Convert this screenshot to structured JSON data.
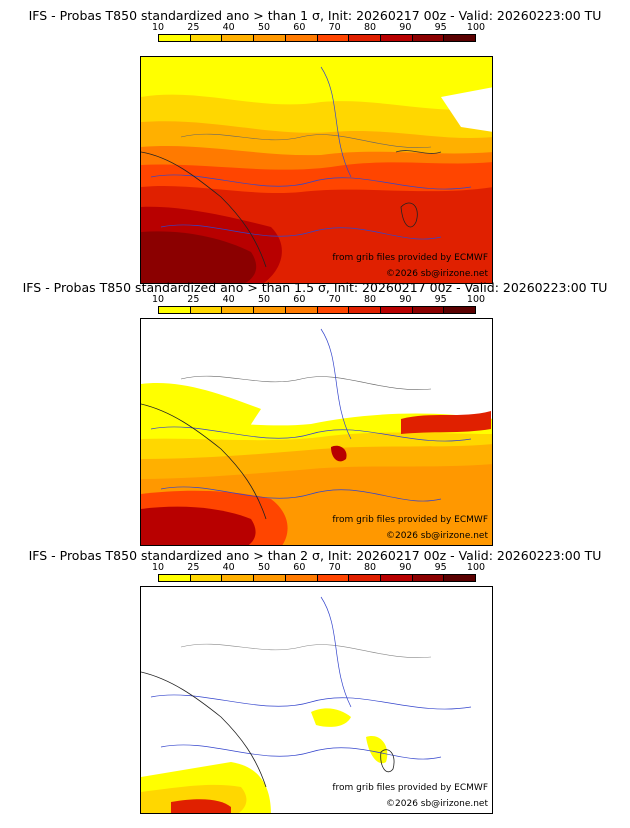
{
  "legend": {
    "labels": [
      "10",
      "25",
      "40",
      "50",
      "60",
      "70",
      "80",
      "90",
      "95",
      "100"
    ],
    "colors": [
      "#ffff00",
      "#ffd700",
      "#ffb000",
      "#ff9800",
      "#ff7a00",
      "#ff4500",
      "#e02000",
      "#b80000",
      "#8b0000",
      "#5a0000"
    ]
  },
  "panels": [
    {
      "title": "IFS - Probas T850  standardized ano > than 1 σ, Init: 20260217 00z - Valid: 20260223:00 TU",
      "credit_source": "from grib files provided by ECMWF",
      "credit_copyright": "©2026 sb@irizone.net"
    },
    {
      "title": "IFS - Probas T850  standardized ano > than 1.5 σ, Init: 20260217 00z - Valid: 20260223:00 TU",
      "credit_source": "from grib files provided by ECMWF",
      "credit_copyright": "©2026 sb@irizone.net"
    },
    {
      "title": "IFS - Probas T850  standardized ano > than 2 σ, Init: 20260217 00z - Valid: 20260223:00 TU",
      "credit_source": "from grib files provided by ECMWF",
      "credit_copyright": "©2026 sb@irizone.net"
    }
  ]
}
